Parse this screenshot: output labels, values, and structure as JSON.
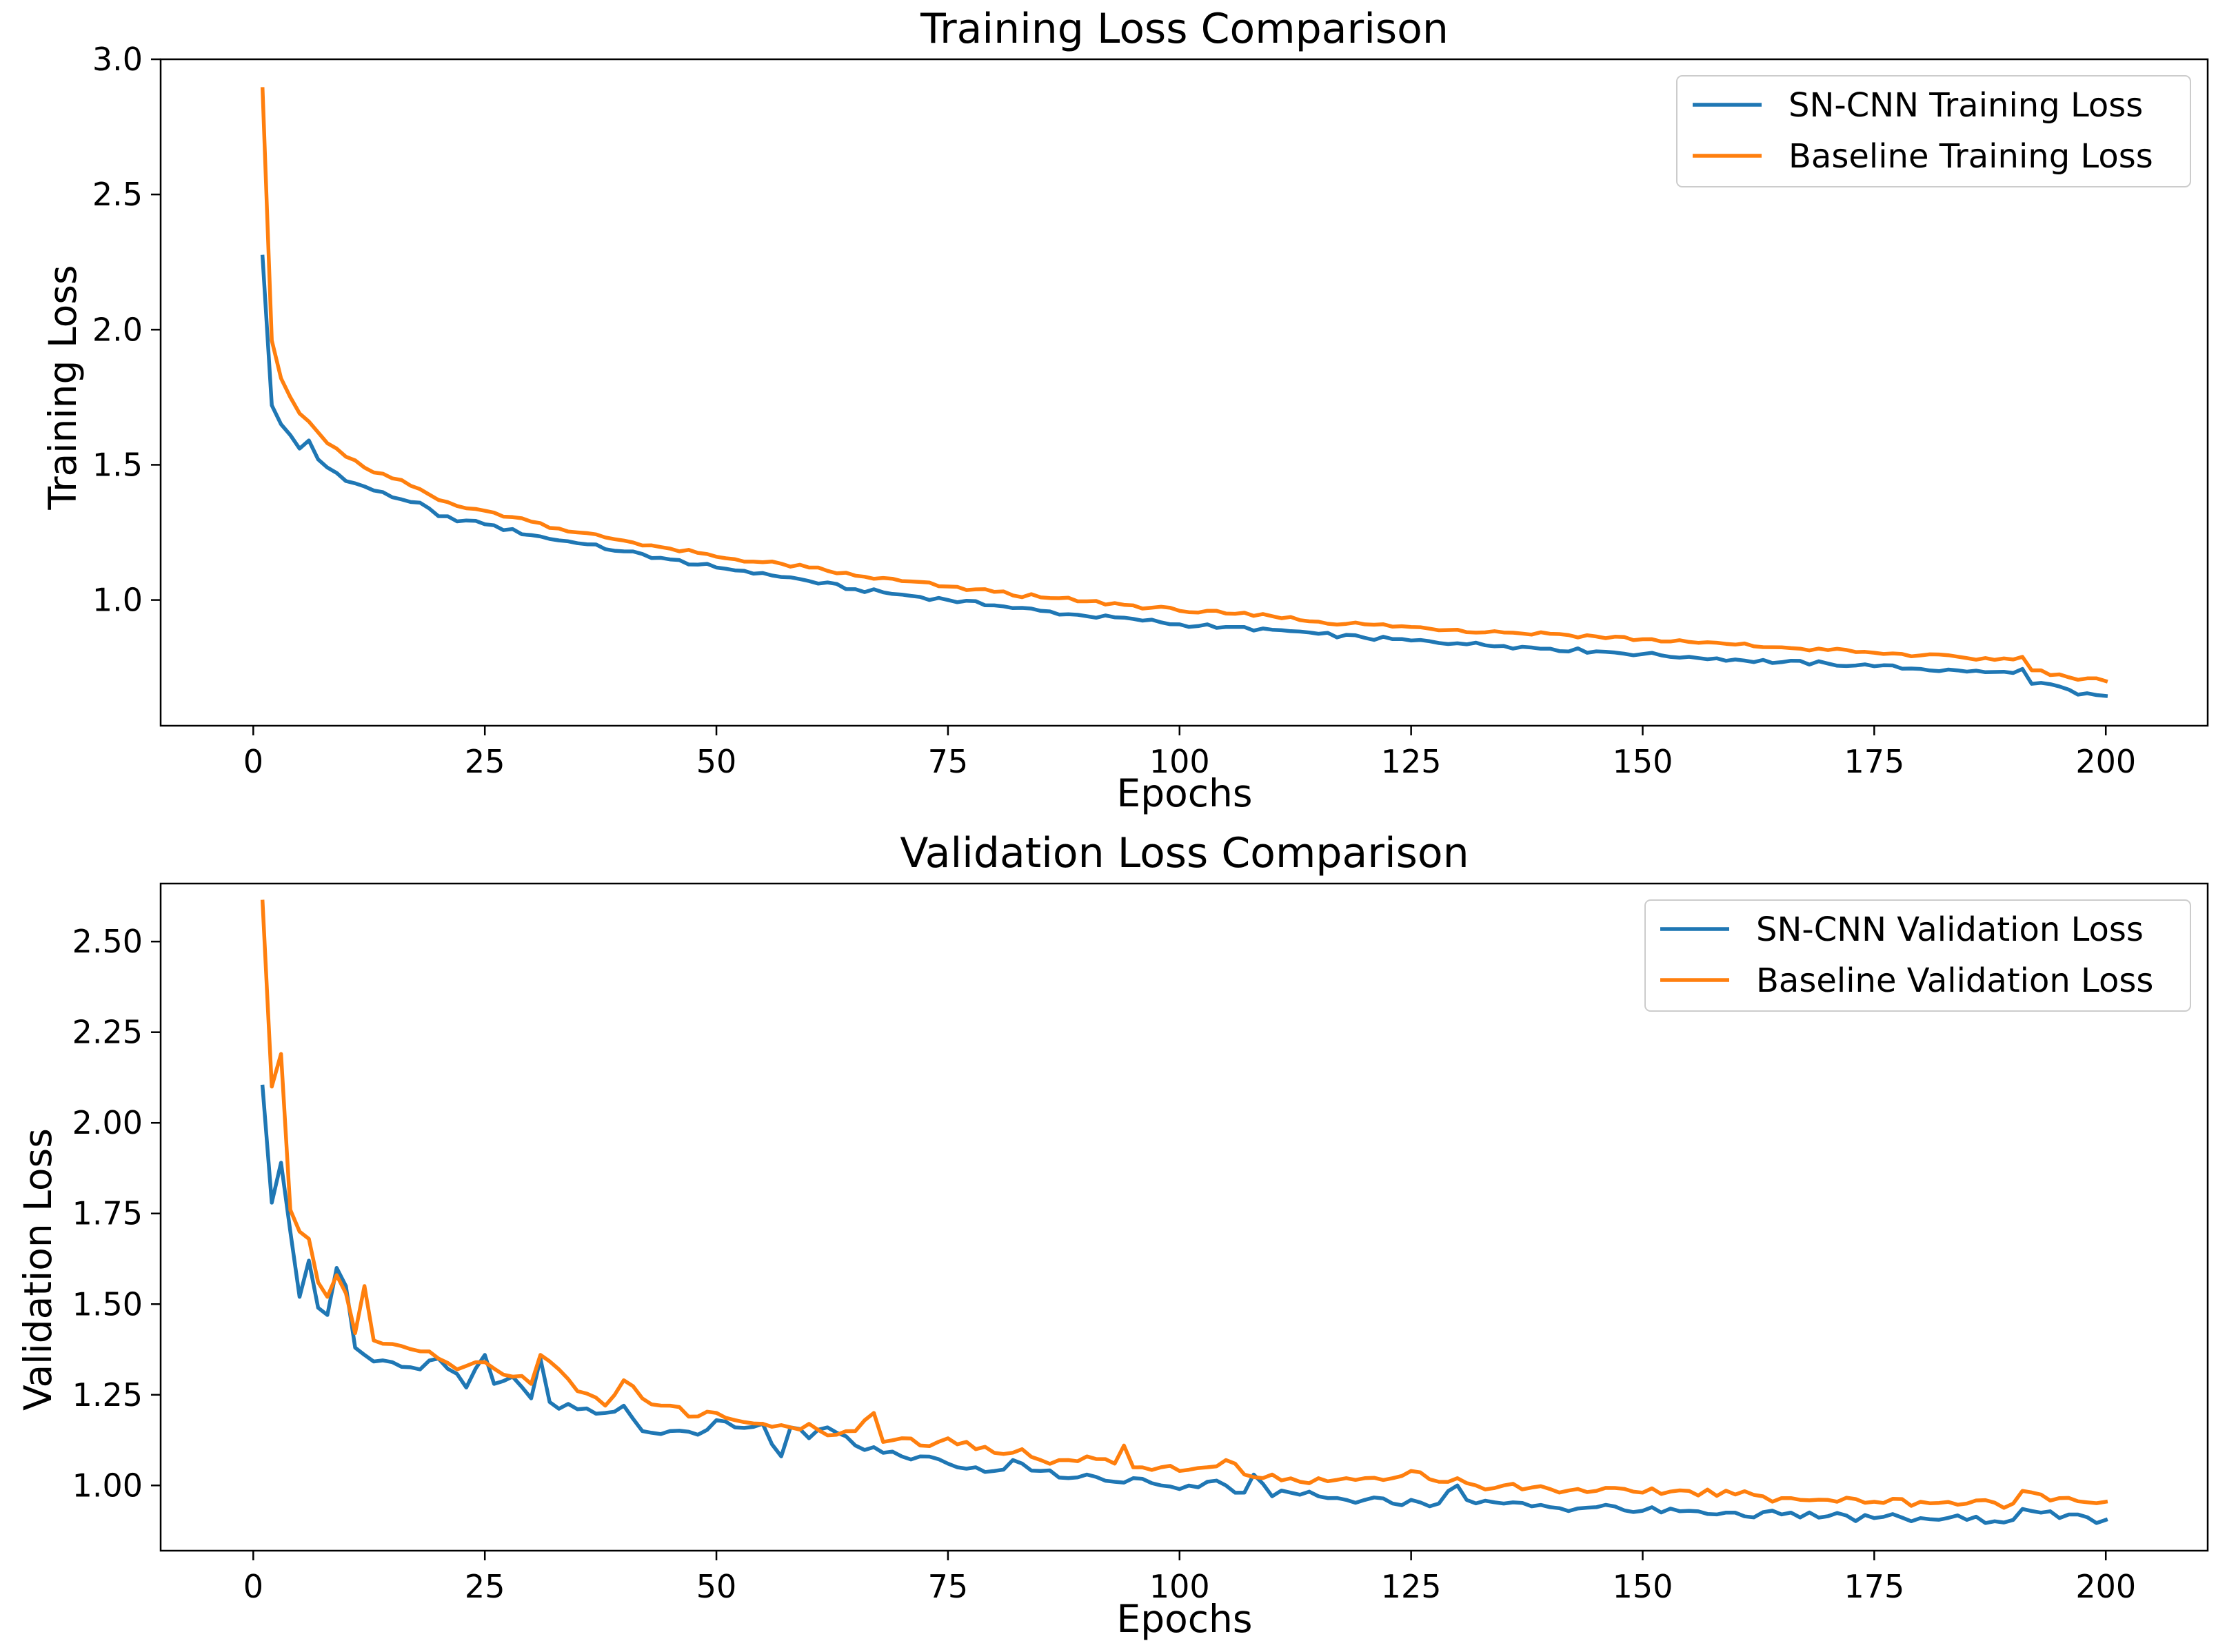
{
  "chart_data": [
    {
      "type": "line",
      "title": "Training Loss Comparison",
      "xlabel": "Epochs",
      "ylabel": "Training Loss",
      "xlim": [
        -10,
        211
      ],
      "ylim": [
        0.535,
        3.0
      ],
      "xticks": [
        0,
        25,
        50,
        75,
        100,
        125,
        150,
        175,
        200
      ],
      "yticks": [
        1.0,
        1.5,
        2.0,
        2.5,
        3.0
      ],
      "ytick_labels": [
        "1.0",
        "1.5",
        "2.0",
        "2.5",
        "3.0"
      ],
      "grid": false,
      "legend_position": "top-right",
      "x": {
        "start": 1,
        "end": 200,
        "step": 1
      },
      "series": [
        {
          "name": "SN-CNN Training Loss",
          "color": "#1f77b4",
          "anchors": [
            [
              1,
              2.27
            ],
            [
              2,
              1.72
            ],
            [
              3,
              1.65
            ],
            [
              4,
              1.61
            ],
            [
              5,
              1.56
            ],
            [
              6,
              1.59
            ],
            [
              7,
              1.52
            ],
            [
              8,
              1.49
            ],
            [
              9,
              1.47
            ],
            [
              10,
              1.44
            ],
            [
              12,
              1.42
            ],
            [
              15,
              1.38
            ],
            [
              18,
              1.36
            ],
            [
              20,
              1.31
            ],
            [
              25,
              1.28
            ],
            [
              30,
              1.24
            ],
            [
              35,
              1.21
            ],
            [
              40,
              1.18
            ],
            [
              45,
              1.15
            ],
            [
              50,
              1.12
            ],
            [
              55,
              1.1
            ],
            [
              60,
              1.07
            ],
            [
              65,
              1.04
            ],
            [
              70,
              1.02
            ],
            [
              75,
              1.0
            ],
            [
              80,
              0.98
            ],
            [
              85,
              0.96
            ],
            [
              90,
              0.94
            ],
            [
              95,
              0.93
            ],
            [
              100,
              0.91
            ],
            [
              105,
              0.9
            ],
            [
              110,
              0.89
            ],
            [
              115,
              0.875
            ],
            [
              120,
              0.86
            ],
            [
              125,
              0.85
            ],
            [
              130,
              0.84
            ],
            [
              135,
              0.83
            ],
            [
              140,
              0.82
            ],
            [
              145,
              0.81
            ],
            [
              150,
              0.8
            ],
            [
              155,
              0.79
            ],
            [
              160,
              0.78
            ],
            [
              165,
              0.77
            ],
            [
              170,
              0.765
            ],
            [
              175,
              0.755
            ],
            [
              180,
              0.745
            ],
            [
              185,
              0.735
            ],
            [
              190,
              0.73
            ],
            [
              191,
              0.745
            ],
            [
              192,
              0.69
            ],
            [
              195,
              0.68
            ],
            [
              197,
              0.65
            ],
            [
              198,
              0.655
            ],
            [
              200,
              0.645
            ]
          ]
        },
        {
          "name": "Baseline Training Loss",
          "color": "#ff7f0e",
          "anchors": [
            [
              1,
              2.89
            ],
            [
              2,
              1.96
            ],
            [
              3,
              1.82
            ],
            [
              4,
              1.75
            ],
            [
              5,
              1.69
            ],
            [
              6,
              1.66
            ],
            [
              7,
              1.62
            ],
            [
              8,
              1.58
            ],
            [
              9,
              1.56
            ],
            [
              10,
              1.53
            ],
            [
              12,
              1.49
            ],
            [
              15,
              1.45
            ],
            [
              18,
              1.41
            ],
            [
              20,
              1.37
            ],
            [
              25,
              1.33
            ],
            [
              30,
              1.29
            ],
            [
              35,
              1.25
            ],
            [
              40,
              1.22
            ],
            [
              45,
              1.19
            ],
            [
              50,
              1.16
            ],
            [
              55,
              1.14
            ],
            [
              60,
              1.12
            ],
            [
              65,
              1.09
            ],
            [
              70,
              1.07
            ],
            [
              75,
              1.05
            ],
            [
              80,
              1.03
            ],
            [
              85,
              1.01
            ],
            [
              90,
              0.995
            ],
            [
              95,
              0.98
            ],
            [
              100,
              0.96
            ],
            [
              105,
              0.95
            ],
            [
              110,
              0.94
            ],
            [
              115,
              0.92
            ],
            [
              120,
              0.91
            ],
            [
              125,
              0.9
            ],
            [
              130,
              0.89
            ],
            [
              135,
              0.88
            ],
            [
              140,
              0.875
            ],
            [
              145,
              0.865
            ],
            [
              150,
              0.855
            ],
            [
              155,
              0.845
            ],
            [
              160,
              0.835
            ],
            [
              165,
              0.825
            ],
            [
              170,
              0.815
            ],
            [
              175,
              0.805
            ],
            [
              180,
              0.795
            ],
            [
              185,
              0.785
            ],
            [
              190,
              0.78
            ],
            [
              191,
              0.79
            ],
            [
              192,
              0.74
            ],
            [
              195,
              0.725
            ],
            [
              197,
              0.705
            ],
            [
              198,
              0.71
            ],
            [
              200,
              0.7
            ]
          ]
        }
      ]
    },
    {
      "type": "line",
      "title": "Validation Loss Comparison",
      "xlabel": "Epochs",
      "ylabel": "Validation Loss",
      "xlim": [
        -10,
        211
      ],
      "ylim": [
        0.82,
        2.66
      ],
      "xticks": [
        0,
        25,
        50,
        75,
        100,
        125,
        150,
        175,
        200
      ],
      "yticks": [
        1.0,
        1.25,
        1.5,
        1.75,
        2.0,
        2.25,
        2.5
      ],
      "ytick_labels": [
        "1.00",
        "1.25",
        "1.50",
        "1.75",
        "2.00",
        "2.25",
        "2.50"
      ],
      "grid": false,
      "legend_position": "top-right",
      "x": {
        "start": 1,
        "end": 200,
        "step": 1
      },
      "series": [
        {
          "name": "SN-CNN Validation Loss",
          "color": "#1f77b4",
          "anchors": [
            [
              1,
              2.1
            ],
            [
              2,
              1.78
            ],
            [
              3,
              1.89
            ],
            [
              4,
              1.7
            ],
            [
              5,
              1.52
            ],
            [
              6,
              1.62
            ],
            [
              7,
              1.49
            ],
            [
              8,
              1.47
            ],
            [
              9,
              1.6
            ],
            [
              10,
              1.55
            ],
            [
              11,
              1.38
            ],
            [
              12,
              1.36
            ],
            [
              15,
              1.34
            ],
            [
              18,
              1.32
            ],
            [
              20,
              1.35
            ],
            [
              23,
              1.27
            ],
            [
              25,
              1.36
            ],
            [
              26,
              1.28
            ],
            [
              28,
              1.3
            ],
            [
              30,
              1.24
            ],
            [
              31,
              1.35
            ],
            [
              32,
              1.23
            ],
            [
              35,
              1.21
            ],
            [
              38,
              1.2
            ],
            [
              40,
              1.22
            ],
            [
              42,
              1.15
            ],
            [
              45,
              1.15
            ],
            [
              48,
              1.14
            ],
            [
              50,
              1.18
            ],
            [
              52,
              1.16
            ],
            [
              55,
              1.17
            ],
            [
              57,
              1.08
            ],
            [
              58,
              1.16
            ],
            [
              60,
              1.13
            ],
            [
              62,
              1.16
            ],
            [
              65,
              1.11
            ],
            [
              68,
              1.09
            ],
            [
              70,
              1.08
            ],
            [
              72,
              1.08
            ],
            [
              75,
              1.06
            ],
            [
              78,
              1.05
            ],
            [
              80,
              1.04
            ],
            [
              82,
              1.07
            ],
            [
              85,
              1.04
            ],
            [
              88,
              1.02
            ],
            [
              90,
              1.03
            ],
            [
              93,
              1.01
            ],
            [
              95,
              1.02
            ],
            [
              98,
              1.0
            ],
            [
              100,
              0.99
            ],
            [
              103,
              1.01
            ],
            [
              105,
              1.0
            ],
            [
              107,
              0.98
            ],
            [
              108,
              1.03
            ],
            [
              110,
              0.97
            ],
            [
              112,
              0.98
            ],
            [
              115,
              0.97
            ],
            [
              118,
              0.96
            ],
            [
              120,
              0.96
            ],
            [
              123,
              0.95
            ],
            [
              125,
              0.96
            ],
            [
              128,
              0.95
            ],
            [
              130,
              1.0
            ],
            [
              131,
              0.96
            ],
            [
              135,
              0.95
            ],
            [
              140,
              0.94
            ],
            [
              145,
              0.94
            ],
            [
              150,
              0.93
            ],
            [
              155,
              0.93
            ],
            [
              160,
              0.925
            ],
            [
              165,
              0.92
            ],
            [
              170,
              0.915
            ],
            [
              175,
              0.91
            ],
            [
              180,
              0.91
            ],
            [
              185,
              0.905
            ],
            [
              190,
              0.905
            ],
            [
              191,
              0.935
            ],
            [
              193,
              0.925
            ],
            [
              195,
              0.91
            ],
            [
              200,
              0.905
            ]
          ]
        },
        {
          "name": "Baseline Validation Loss",
          "color": "#ff7f0e",
          "anchors": [
            [
              1,
              2.61
            ],
            [
              2,
              2.1
            ],
            [
              3,
              2.19
            ],
            [
              4,
              1.76
            ],
            [
              5,
              1.7
            ],
            [
              6,
              1.68
            ],
            [
              7,
              1.56
            ],
            [
              8,
              1.52
            ],
            [
              9,
              1.58
            ],
            [
              10,
              1.53
            ],
            [
              11,
              1.42
            ],
            [
              12,
              1.55
            ],
            [
              13,
              1.4
            ],
            [
              15,
              1.39
            ],
            [
              18,
              1.37
            ],
            [
              20,
              1.35
            ],
            [
              22,
              1.32
            ],
            [
              25,
              1.34
            ],
            [
              28,
              1.3
            ],
            [
              30,
              1.28
            ],
            [
              31,
              1.36
            ],
            [
              33,
              1.32
            ],
            [
              35,
              1.26
            ],
            [
              38,
              1.22
            ],
            [
              40,
              1.29
            ],
            [
              42,
              1.24
            ],
            [
              45,
              1.22
            ],
            [
              48,
              1.19
            ],
            [
              50,
              1.2
            ],
            [
              52,
              1.18
            ],
            [
              55,
              1.17
            ],
            [
              58,
              1.16
            ],
            [
              60,
              1.17
            ],
            [
              63,
              1.14
            ],
            [
              65,
              1.15
            ],
            [
              67,
              1.2
            ],
            [
              68,
              1.12
            ],
            [
              70,
              1.13
            ],
            [
              72,
              1.11
            ],
            [
              75,
              1.13
            ],
            [
              78,
              1.1
            ],
            [
              80,
              1.09
            ],
            [
              83,
              1.1
            ],
            [
              85,
              1.07
            ],
            [
              88,
              1.07
            ],
            [
              90,
              1.08
            ],
            [
              93,
              1.06
            ],
            [
              94,
              1.11
            ],
            [
              95,
              1.05
            ],
            [
              98,
              1.05
            ],
            [
              100,
              1.04
            ],
            [
              103,
              1.05
            ],
            [
              105,
              1.07
            ],
            [
              106,
              1.06
            ],
            [
              107,
              1.03
            ],
            [
              110,
              1.03
            ],
            [
              113,
              1.01
            ],
            [
              115,
              1.02
            ],
            [
              118,
              1.02
            ],
            [
              120,
              1.02
            ],
            [
              123,
              1.02
            ],
            [
              125,
              1.04
            ],
            [
              128,
              1.01
            ],
            [
              130,
              1.02
            ],
            [
              132,
              1.0
            ],
            [
              135,
              1.0
            ],
            [
              140,
              0.99
            ],
            [
              145,
              0.985
            ],
            [
              150,
              0.98
            ],
            [
              155,
              0.985
            ],
            [
              160,
              0.975
            ],
            [
              165,
              0.965
            ],
            [
              170,
              0.96
            ],
            [
              175,
              0.955
            ],
            [
              180,
              0.955
            ],
            [
              185,
              0.95
            ],
            [
              190,
              0.95
            ],
            [
              191,
              0.985
            ],
            [
              193,
              0.975
            ],
            [
              195,
              0.965
            ],
            [
              200,
              0.955
            ]
          ]
        }
      ]
    }
  ]
}
